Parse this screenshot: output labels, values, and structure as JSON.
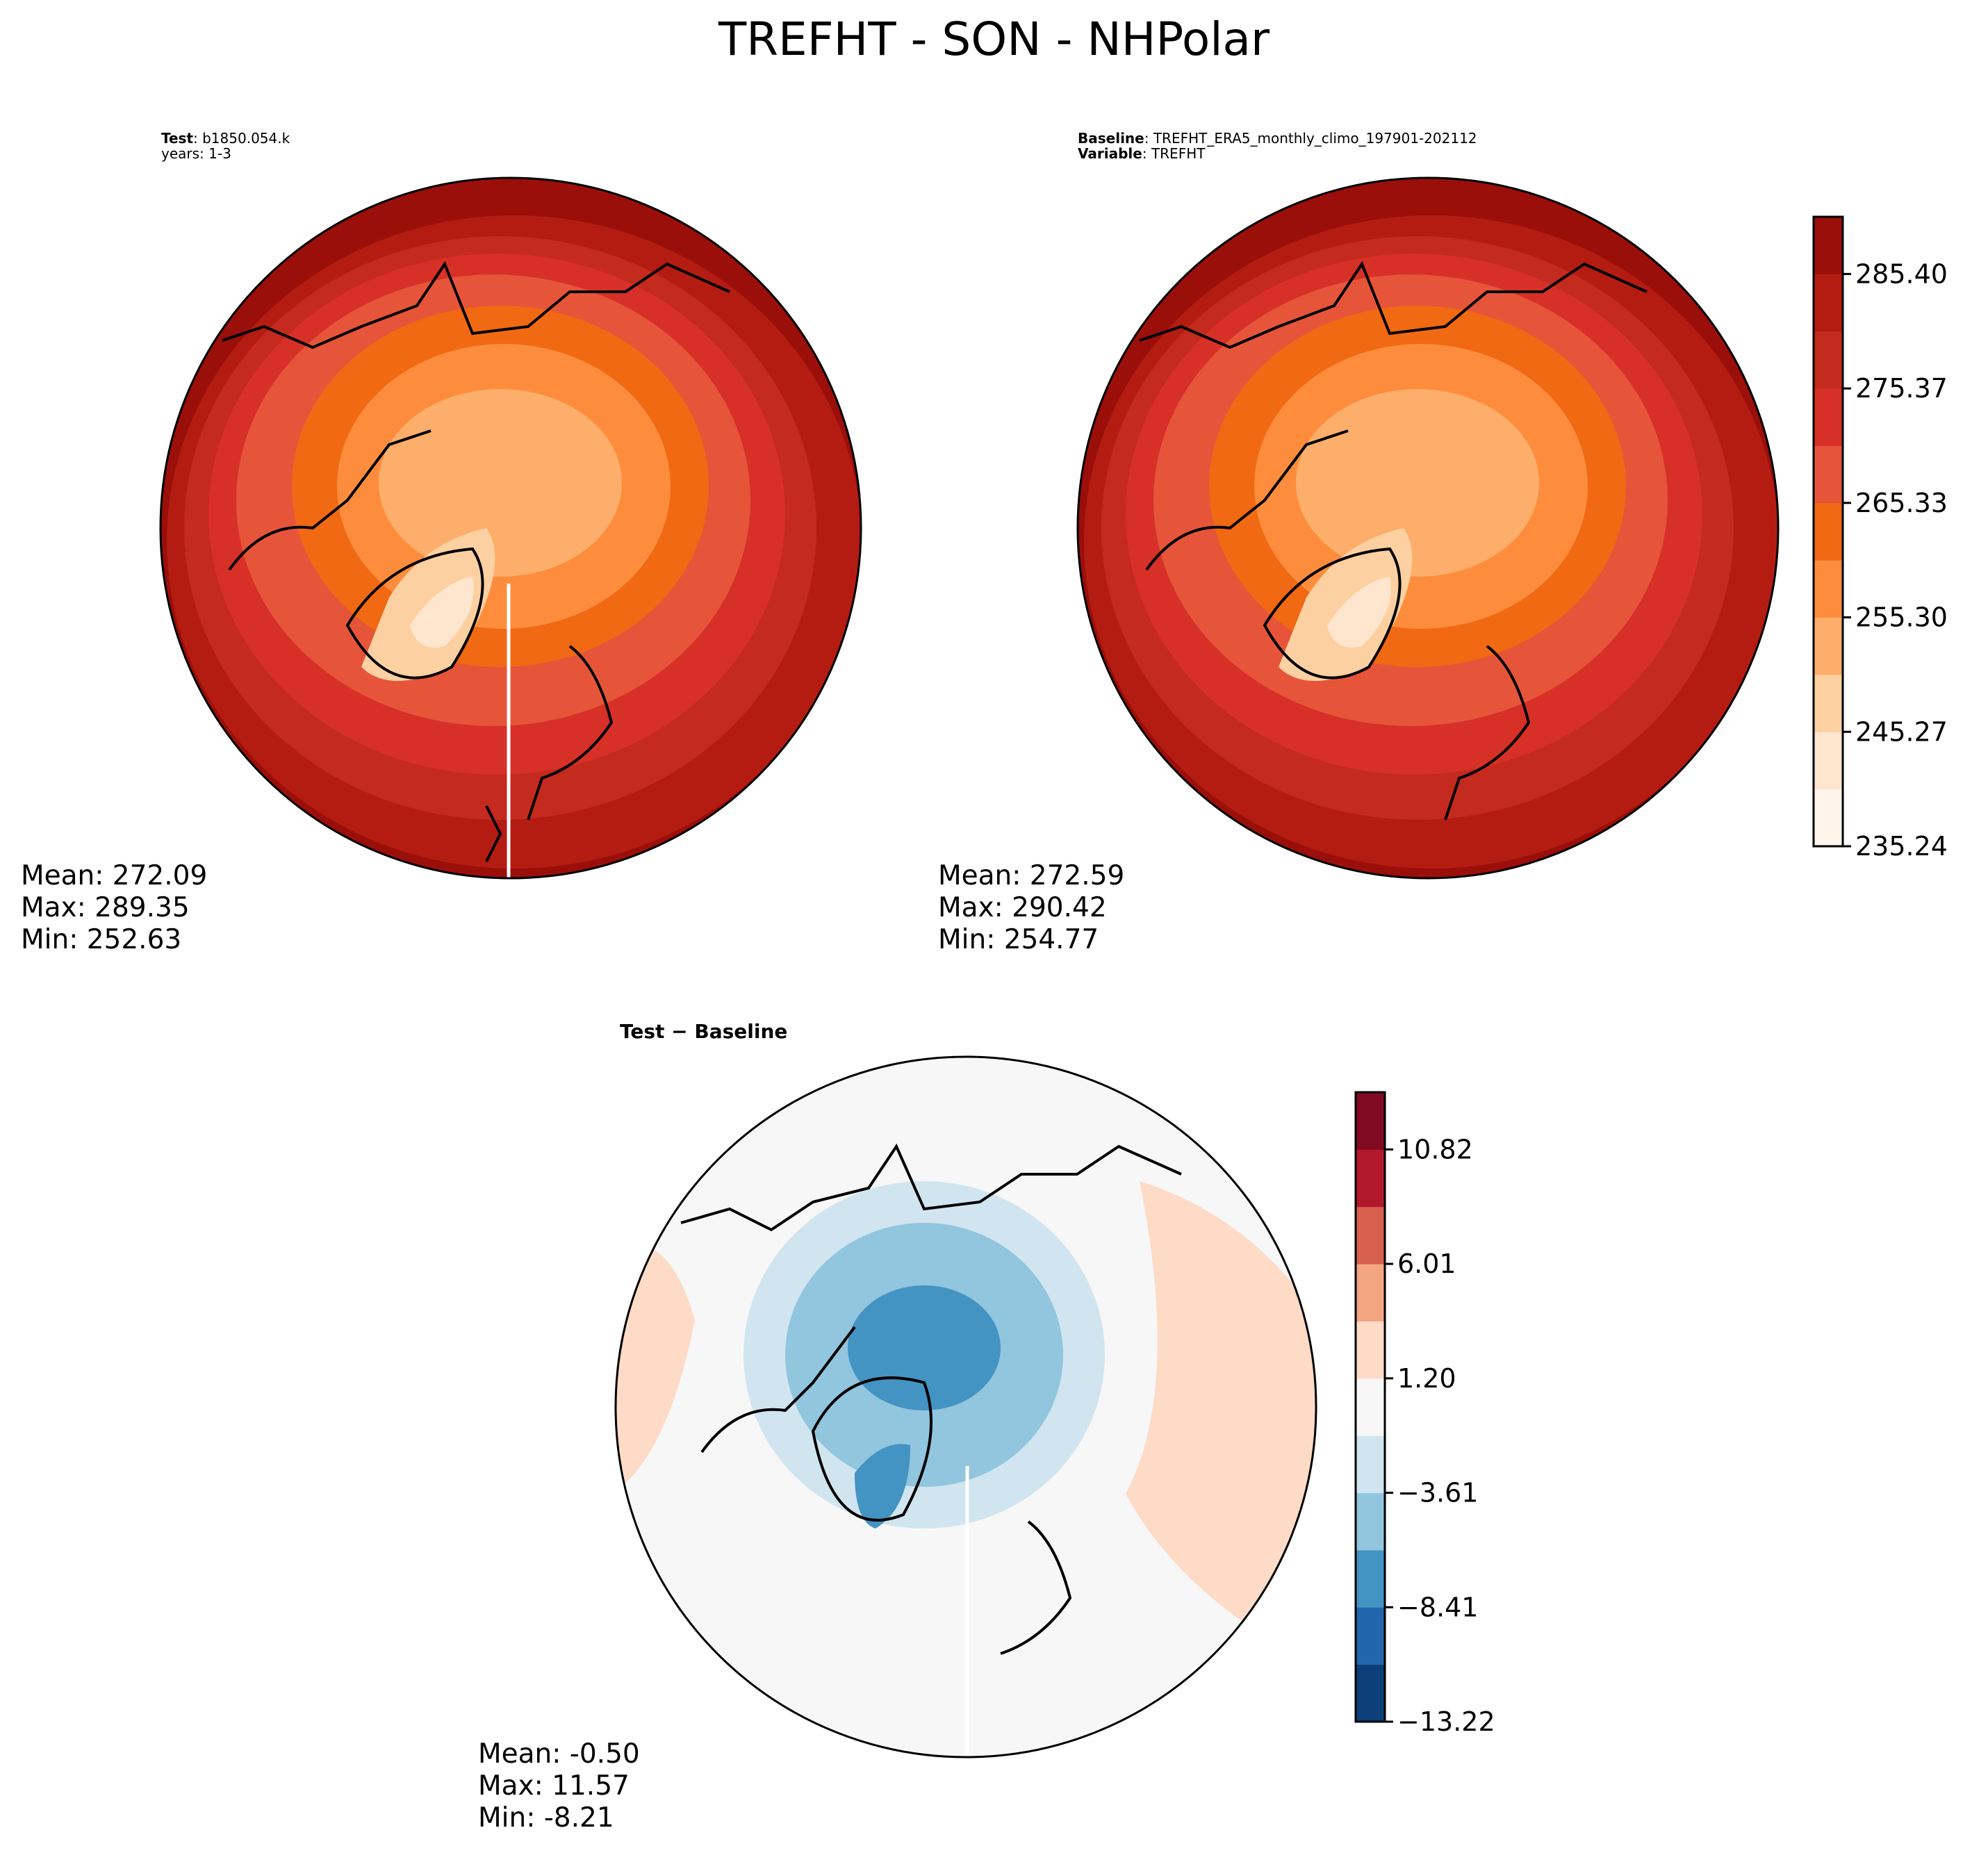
{
  "title": "TREFHT - SON - NHPolar",
  "test_panel": {
    "label_key": "Test",
    "label_value": ": b1850.054.k",
    "years": "years: 1-3",
    "stats": {
      "mean": "Mean: 272.09",
      "max": "Max: 289.35",
      "min": "Min: 252.63"
    }
  },
  "baseline_panel": {
    "label_key": "Baseline",
    "label_value": ": TREFHT_ERA5_monthly_climo_197901-202112",
    "variable_key": "Variable",
    "variable_value": ": TREFHT",
    "stats": {
      "mean": "Mean: 272.59",
      "max": "Max: 290.42",
      "min": "Min: 254.77"
    }
  },
  "diff_panel": {
    "title": "Test − Baseline",
    "stats": {
      "mean": "Mean: -0.50",
      "max": "Max: 11.57",
      "min": "Min: -8.21"
    }
  },
  "colorbar_main": {
    "ticks": [
      "285.40",
      "275.37",
      "265.33",
      "255.30",
      "245.27",
      "235.24"
    ],
    "colors": [
      "#fff5eb",
      "#fee6ce",
      "#fdd0a2",
      "#fdae6b",
      "#fd8d3c",
      "#f16913",
      "#e6553a",
      "#d73027",
      "#c42a1d",
      "#b41c12",
      "#9b0f0a"
    ]
  },
  "colorbar_diff": {
    "ticks": [
      "10.82",
      "6.01",
      "1.20",
      "−3.61",
      "−8.41",
      "−13.22"
    ],
    "colors": [
      "#0d3f7a",
      "#2166ac",
      "#4393c3",
      "#92c5de",
      "#d1e5f0",
      "#f7f7f7",
      "#fddbc7",
      "#f4a582",
      "#d6604d",
      "#b2182b",
      "#800a21"
    ]
  }
}
